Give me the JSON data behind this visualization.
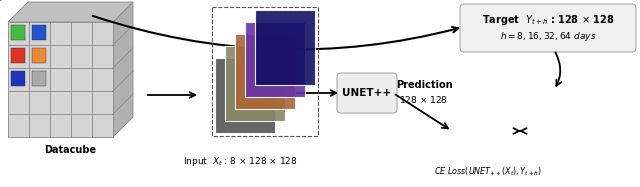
{
  "bg_color": "#ffffff",
  "datacube_label": "Datacube",
  "input_label": "Input  $X_t$ : 8 \\times 128 \\times 128",
  "unetpp_label": "UNET++",
  "prediction_label_line1": "Prediction",
  "prediction_label_line2": "128 \\times 128",
  "target_box_text_line1": "Target  $Y_{t+h}$ : 128 \\times 128",
  "target_box_text_line2": "$h = 8, 16, 32, 64$ days",
  "ce_loss_label": "$CE\\ Loss(UNET_{++}(X_t), Y_{t+h})$",
  "datacube_face_color": "#d5d5d5",
  "datacube_side_color": "#b0b0b0",
  "datacube_top_color": "#c0c0c0",
  "datacube_edge_color": "#888888",
  "box_facecolor": "#eeeeee",
  "box_edgecolor": "#aaaaaa",
  "target_box_facecolor": "#f0f0f0",
  "target_box_edgecolor": "#aaaaaa",
  "icon_colors": [
    [
      "#44bb44",
      "#2255cc",
      "#dddddd"
    ],
    [
      "#dd3322",
      "#ee8833",
      "#ffffff"
    ],
    [
      "#2233bb",
      "#aaaaaa",
      "#cccccc"
    ]
  ]
}
